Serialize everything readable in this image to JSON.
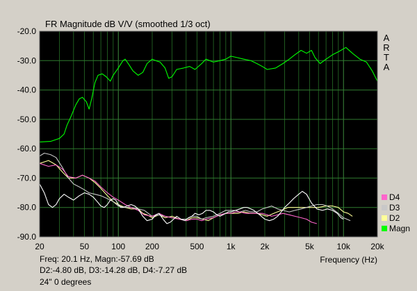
{
  "chart_data": {
    "type": "line",
    "title": "FR Magnitude dB V/V (smoothed 1/3 oct)",
    "xlabel": "Frequency (Hz)",
    "ylabel": "",
    "x_scale": "log",
    "xlim": [
      20,
      20000
    ],
    "ylim": [
      -90,
      -20
    ],
    "grid": true,
    "legend": "bottom-right",
    "y_ticks": [
      "-20.0",
      "-30.0",
      "-40.0",
      "-50.0",
      "-60.0",
      "-70.0",
      "-80.0",
      "-90.0"
    ],
    "x_ticks": [
      {
        "v": 20,
        "label": "20"
      },
      {
        "v": 50,
        "label": "50"
      },
      {
        "v": 100,
        "label": "100"
      },
      {
        "v": 200,
        "label": "200"
      },
      {
        "v": 500,
        "label": "500"
      },
      {
        "v": 1000,
        "label": "1k"
      },
      {
        "v": 2000,
        "label": "2k"
      },
      {
        "v": 5000,
        "label": "5k"
      },
      {
        "v": 10000,
        "label": "10k"
      },
      {
        "v": 20000,
        "label": "20k"
      }
    ],
    "series": [
      {
        "name": "Magn",
        "color": "#00ff00",
        "points": [
          [
            20,
            -57.7
          ],
          [
            25,
            -57.5
          ],
          [
            30,
            -56.5
          ],
          [
            33,
            -55
          ],
          [
            35,
            -52
          ],
          [
            38,
            -49
          ],
          [
            42,
            -45
          ],
          [
            45,
            -43
          ],
          [
            48,
            -42.5
          ],
          [
            52,
            -44
          ],
          [
            55,
            -46.5
          ],
          [
            58,
            -43
          ],
          [
            62,
            -37.5
          ],
          [
            66,
            -35
          ],
          [
            72,
            -34.5
          ],
          [
            78,
            -35.5
          ],
          [
            85,
            -37
          ],
          [
            90,
            -35
          ],
          [
            100,
            -32.5
          ],
          [
            110,
            -30
          ],
          [
            115,
            -29.5
          ],
          [
            125,
            -31.5
          ],
          [
            135,
            -33.5
          ],
          [
            150,
            -35
          ],
          [
            165,
            -34
          ],
          [
            180,
            -31
          ],
          [
            200,
            -29.5
          ],
          [
            215,
            -30
          ],
          [
            235,
            -30.5
          ],
          [
            260,
            -32.5
          ],
          [
            280,
            -36
          ],
          [
            300,
            -35.5
          ],
          [
            330,
            -33
          ],
          [
            380,
            -32.5
          ],
          [
            430,
            -32
          ],
          [
            480,
            -33
          ],
          [
            550,
            -31
          ],
          [
            600,
            -29.5
          ],
          [
            700,
            -30.5
          ],
          [
            800,
            -30
          ],
          [
            900,
            -29.5
          ],
          [
            1000,
            -28.5
          ],
          [
            1150,
            -29
          ],
          [
            1300,
            -29.5
          ],
          [
            1500,
            -30
          ],
          [
            1700,
            -31
          ],
          [
            1900,
            -32
          ],
          [
            2100,
            -33
          ],
          [
            2500,
            -32.5
          ],
          [
            2900,
            -31
          ],
          [
            3300,
            -29.5
          ],
          [
            3700,
            -28
          ],
          [
            4200,
            -26.5
          ],
          [
            4700,
            -27.5
          ],
          [
            5200,
            -26.5
          ],
          [
            5600,
            -29
          ],
          [
            6200,
            -31
          ],
          [
            7000,
            -29.5
          ],
          [
            8000,
            -28
          ],
          [
            9000,
            -27
          ],
          [
            10500,
            -25.5
          ],
          [
            12000,
            -27.5
          ],
          [
            14000,
            -29.5
          ],
          [
            16000,
            -30.5
          ],
          [
            18000,
            -33.5
          ],
          [
            20000,
            -37
          ]
        ]
      },
      {
        "name": "D2",
        "color": "#ffff99",
        "points": [
          [
            20,
            -65
          ],
          [
            24,
            -64
          ],
          [
            28,
            -65.5
          ],
          [
            32,
            -68
          ],
          [
            36,
            -70
          ],
          [
            42,
            -70
          ],
          [
            48,
            -69
          ],
          [
            55,
            -70
          ],
          [
            62,
            -71.5
          ],
          [
            70,
            -73.5
          ],
          [
            80,
            -76
          ],
          [
            90,
            -78
          ],
          [
            100,
            -79
          ],
          [
            115,
            -80
          ],
          [
            130,
            -80.5
          ],
          [
            150,
            -80.5
          ],
          [
            165,
            -82
          ],
          [
            180,
            -82.5
          ],
          [
            200,
            -83.5
          ],
          [
            230,
            -82.5
          ],
          [
            260,
            -83.5
          ],
          [
            300,
            -83
          ],
          [
            350,
            -84
          ],
          [
            400,
            -84.5
          ],
          [
            450,
            -83.5
          ],
          [
            500,
            -83.5
          ],
          [
            560,
            -84
          ],
          [
            630,
            -84.5
          ],
          [
            700,
            -83.5
          ],
          [
            800,
            -82.5
          ],
          [
            900,
            -82
          ],
          [
            1000,
            -82
          ],
          [
            1150,
            -82
          ],
          [
            1300,
            -81.5
          ],
          [
            1500,
            -82
          ],
          [
            1700,
            -82
          ],
          [
            1900,
            -82.5
          ],
          [
            2100,
            -83
          ],
          [
            2400,
            -82
          ],
          [
            2800,
            -81
          ],
          [
            3200,
            -80
          ],
          [
            3700,
            -80
          ],
          [
            4200,
            -80
          ],
          [
            4700,
            -80
          ],
          [
            5200,
            -80
          ],
          [
            6000,
            -80
          ],
          [
            7000,
            -79.5
          ],
          [
            8000,
            -79.5
          ],
          [
            9000,
            -80
          ],
          [
            10000,
            -81.5
          ],
          [
            11000,
            -82
          ],
          [
            12000,
            -83
          ]
        ]
      },
      {
        "name": "D3",
        "color": "#c8c8c8",
        "points": [
          [
            20,
            -62.5
          ],
          [
            22,
            -61.5
          ],
          [
            25,
            -62
          ],
          [
            28,
            -63
          ],
          [
            32,
            -66.5
          ],
          [
            36,
            -70
          ],
          [
            40,
            -72
          ],
          [
            45,
            -73
          ],
          [
            50,
            -74
          ],
          [
            55,
            -75
          ],
          [
            62,
            -75.5
          ],
          [
            70,
            -76
          ],
          [
            80,
            -77
          ],
          [
            90,
            -78
          ],
          [
            100,
            -79.5
          ],
          [
            115,
            -80
          ],
          [
            130,
            -80
          ],
          [
            150,
            -80.5
          ],
          [
            170,
            -81
          ],
          [
            200,
            -83
          ],
          [
            230,
            -82.5
          ],
          [
            260,
            -83
          ],
          [
            300,
            -83.5
          ],
          [
            350,
            -84
          ],
          [
            400,
            -84
          ],
          [
            450,
            -83
          ],
          [
            500,
            -83
          ],
          [
            550,
            -84
          ],
          [
            600,
            -83.5
          ],
          [
            700,
            -83
          ],
          [
            800,
            -82
          ],
          [
            900,
            -81
          ],
          [
            1000,
            -81
          ],
          [
            1100,
            -81
          ],
          [
            1200,
            -81.5
          ],
          [
            1350,
            -81
          ],
          [
            1500,
            -81.5
          ],
          [
            1700,
            -81.5
          ],
          [
            1900,
            -80.5
          ],
          [
            2100,
            -80
          ],
          [
            2300,
            -79.5
          ],
          [
            2600,
            -80.5
          ],
          [
            2900,
            -81
          ],
          [
            3300,
            -81.5
          ],
          [
            3700,
            -81
          ],
          [
            4200,
            -80.5
          ],
          [
            4700,
            -80
          ],
          [
            5200,
            -79.5
          ],
          [
            5800,
            -79
          ],
          [
            6500,
            -79
          ],
          [
            7200,
            -79.5
          ],
          [
            8000,
            -80.5
          ],
          [
            9000,
            -82
          ],
          [
            10000,
            -83.5
          ],
          [
            11500,
            -84.5
          ]
        ]
      },
      {
        "name": "D4",
        "color": "#ff66cc",
        "points": [
          [
            20,
            -65
          ],
          [
            24,
            -66
          ],
          [
            28,
            -65.5
          ],
          [
            32,
            -67
          ],
          [
            36,
            -69.5
          ],
          [
            42,
            -70
          ],
          [
            48,
            -69
          ],
          [
            55,
            -70
          ],
          [
            62,
            -71
          ],
          [
            70,
            -73
          ],
          [
            80,
            -75
          ],
          [
            90,
            -76.5
          ],
          [
            100,
            -77.5
          ],
          [
            115,
            -79
          ],
          [
            130,
            -80
          ],
          [
            150,
            -81
          ],
          [
            170,
            -82.5
          ],
          [
            200,
            -83
          ],
          [
            230,
            -82
          ],
          [
            260,
            -83
          ],
          [
            300,
            -83.5
          ],
          [
            350,
            -84
          ],
          [
            400,
            -84.5
          ],
          [
            450,
            -84
          ],
          [
            500,
            -84
          ],
          [
            550,
            -84.5
          ],
          [
            600,
            -84
          ],
          [
            700,
            -83.5
          ],
          [
            800,
            -82.5
          ],
          [
            900,
            -82
          ],
          [
            1000,
            -82
          ],
          [
            1100,
            -81.5
          ],
          [
            1200,
            -81.5
          ],
          [
            1350,
            -82
          ],
          [
            1500,
            -82
          ],
          [
            1700,
            -82
          ],
          [
            1900,
            -82
          ],
          [
            2100,
            -82.5
          ],
          [
            2300,
            -83
          ],
          [
            2600,
            -82.5
          ],
          [
            2900,
            -82
          ],
          [
            3300,
            -82.5
          ],
          [
            3700,
            -83
          ],
          [
            4200,
            -83.5
          ],
          [
            4700,
            -84
          ],
          [
            5200,
            -85
          ],
          [
            5800,
            -85.5
          ]
        ]
      },
      {
        "name": "",
        "color": "#ffffff",
        "points": [
          [
            20,
            -72
          ],
          [
            22,
            -75
          ],
          [
            24,
            -79
          ],
          [
            26,
            -80
          ],
          [
            28,
            -79
          ],
          [
            30,
            -77
          ],
          [
            33,
            -75.5
          ],
          [
            36,
            -76.5
          ],
          [
            40,
            -77.5
          ],
          [
            45,
            -76
          ],
          [
            50,
            -75
          ],
          [
            55,
            -75.5
          ],
          [
            60,
            -76.5
          ],
          [
            65,
            -78
          ],
          [
            70,
            -79.5
          ],
          [
            75,
            -80
          ],
          [
            80,
            -79
          ],
          [
            85,
            -77.5
          ],
          [
            90,
            -77
          ],
          [
            95,
            -77.5
          ],
          [
            100,
            -79
          ],
          [
            105,
            -80
          ],
          [
            110,
            -80
          ],
          [
            120,
            -79.5
          ],
          [
            130,
            -79
          ],
          [
            140,
            -79.5
          ],
          [
            150,
            -80.5
          ],
          [
            165,
            -83
          ],
          [
            180,
            -84.5
          ],
          [
            200,
            -84
          ],
          [
            215,
            -82.5
          ],
          [
            230,
            -82
          ],
          [
            250,
            -84
          ],
          [
            270,
            -85.5
          ],
          [
            290,
            -85
          ],
          [
            310,
            -84
          ],
          [
            330,
            -83
          ],
          [
            360,
            -84
          ],
          [
            390,
            -84.5
          ],
          [
            420,
            -83.5
          ],
          [
            450,
            -83
          ],
          [
            480,
            -82
          ],
          [
            520,
            -82.5
          ],
          [
            560,
            -82
          ],
          [
            600,
            -81
          ],
          [
            650,
            -81
          ],
          [
            700,
            -81.5
          ],
          [
            750,
            -82.5
          ],
          [
            800,
            -83
          ],
          [
            850,
            -82.5
          ],
          [
            900,
            -82
          ],
          [
            950,
            -81.5
          ],
          [
            1000,
            -81.5
          ],
          [
            1100,
            -81
          ],
          [
            1200,
            -80.5
          ],
          [
            1300,
            -80
          ],
          [
            1400,
            -80
          ],
          [
            1500,
            -80.5
          ],
          [
            1600,
            -81
          ],
          [
            1800,
            -82.5
          ],
          [
            2000,
            -84
          ],
          [
            2200,
            -84.5
          ],
          [
            2400,
            -84
          ],
          [
            2600,
            -83
          ],
          [
            2800,
            -81.5
          ],
          [
            3000,
            -80
          ],
          [
            3300,
            -78.5
          ],
          [
            3600,
            -77
          ],
          [
            4000,
            -75.5
          ],
          [
            4300,
            -74.5
          ],
          [
            4700,
            -75.5
          ],
          [
            5200,
            -78.5
          ],
          [
            5800,
            -80.5
          ],
          [
            6500,
            -81
          ],
          [
            7200,
            -80.5
          ],
          [
            8000,
            -81
          ],
          [
            8800,
            -82
          ],
          [
            9500,
            -83.5
          ],
          [
            10000,
            -84
          ]
        ]
      }
    ]
  },
  "brand": [
    "A",
    "R",
    "T",
    "A"
  ],
  "legend": [
    {
      "name": "D4",
      "color": "#ff66cc"
    },
    {
      "name": "D3",
      "color": "#c8c8c8"
    },
    {
      "name": "D2",
      "color": "#ffff99"
    },
    {
      "name": "Magn",
      "color": "#00ff00"
    }
  ],
  "info": {
    "line1": "Freq: 20.1 Hz, Magn:-57.69 dB",
    "line2": "D2:-4.80 dB, D3:-14.28 dB, D4:-7.27 dB",
    "line3": "24\" 0 degrees"
  }
}
